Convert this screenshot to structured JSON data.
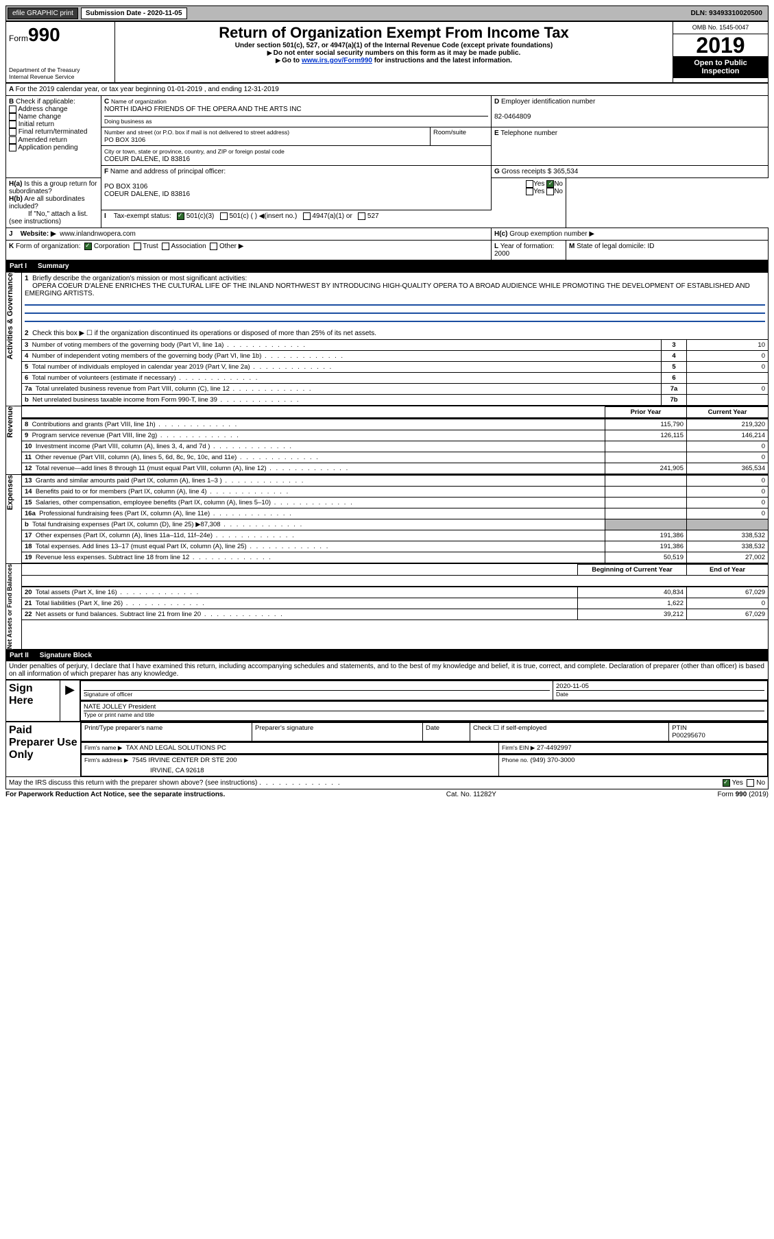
{
  "topbar": {
    "efile": "efile GRAPHIC print",
    "sub_label": "Submission Date - 2020-11-05",
    "dln": "DLN: 93493310020500"
  },
  "header": {
    "form": "Form",
    "form_num": "990",
    "dept": "Department of the Treasury",
    "irs": "Internal Revenue Service",
    "title": "Return of Organization Exempt From Income Tax",
    "subtitle": "Under section 501(c), 527, or 4947(a)(1) of the Internal Revenue Code (except private foundations)",
    "warn1": "Do not enter social security numbers on this form as it may be made public.",
    "warn2_pre": "Go to ",
    "warn2_link": "www.irs.gov/Form990",
    "warn2_post": " for instructions and the latest information.",
    "omb": "OMB No. 1545-0047",
    "year": "2019",
    "open": "Open to Public Inspection"
  },
  "A": {
    "text": "For the 2019 calendar year, or tax year beginning 01-01-2019    , and ending 12-31-2019"
  },
  "B": {
    "label": "Check if applicable:",
    "items": [
      "Address change",
      "Name change",
      "Initial return",
      "Final return/terminated",
      "Amended return",
      "Application pending"
    ]
  },
  "C": {
    "name_label": "Name of organization",
    "name": "NORTH IDAHO FRIENDS OF THE OPERA AND THE ARTS INC",
    "dba_label": "Doing business as",
    "street_label": "Number and street (or P.O. box if mail is not delivered to street address)",
    "room_label": "Room/suite",
    "street": "PO BOX 3106",
    "city_label": "City or town, state or province, country, and ZIP or foreign postal code",
    "city": "COEUR DALENE, ID  83816"
  },
  "D": {
    "label": "Employer identification number",
    "val": "82-0464809"
  },
  "E": {
    "label": "Telephone number"
  },
  "G": {
    "label": "Gross receipts $",
    "val": "365,534"
  },
  "F": {
    "label": "Name and address of principal officer:",
    "addr1": "PO BOX 3106",
    "addr2": "COEUR DALENE, ID  83816"
  },
  "H": {
    "a": "Is this a group return for subordinates?",
    "b": "Are all subordinates included?",
    "b_note": "If \"No,\" attach a list. (see instructions)",
    "c": "Group exemption number ▶"
  },
  "I": {
    "label": "Tax-exempt status:",
    "opts": [
      "501(c)(3)",
      "501(c) (  ) ◀(insert no.)",
      "4947(a)(1) or",
      "527"
    ]
  },
  "J": {
    "label": "Website: ▶",
    "val": "www.inlandnwopera.com"
  },
  "K": {
    "label": "Form of organization:",
    "opts": [
      "Corporation",
      "Trust",
      "Association",
      "Other ▶"
    ]
  },
  "L": {
    "label": "Year of formation:",
    "val": "2000"
  },
  "M": {
    "label": "State of legal domicile:",
    "val": "ID"
  },
  "part1": {
    "title": "Part I",
    "name": "Summary",
    "q1": "Briefly describe the organization's mission or most significant activities:",
    "q1_ans": "OPERA COEUR D'ALENE ENRICHES THE CULTURAL LIFE OF THE INLAND NORTHWEST BY INTRODUCING HIGH-QUALITY OPERA TO A BROAD AUDIENCE WHILE PROMOTING THE DEVELOPMENT OF ESTABLISHED AND EMERGING ARTISTS.",
    "q2": "Check this box ▶ ☐  if the organization discontinued its operations or disposed of more than 25% of its net assets.",
    "rows_gov": [
      {
        "n": "3",
        "t": "Number of voting members of the governing body (Part VI, line 1a)",
        "box": "3",
        "v": "10"
      },
      {
        "n": "4",
        "t": "Number of independent voting members of the governing body (Part VI, line 1b)",
        "box": "4",
        "v": "0"
      },
      {
        "n": "5",
        "t": "Total number of individuals employed in calendar year 2019 (Part V, line 2a)",
        "box": "5",
        "v": "0"
      },
      {
        "n": "6",
        "t": "Total number of volunteers (estimate if necessary)",
        "box": "6",
        "v": ""
      },
      {
        "n": "7a",
        "t": "Total unrelated business revenue from Part VIII, column (C), line 12",
        "box": "7a",
        "v": "0"
      },
      {
        "n": "b",
        "t": "Net unrelated business taxable income from Form 990-T, line 39",
        "box": "7b",
        "v": ""
      }
    ],
    "prior": "Prior Year",
    "current": "Current Year",
    "rev": [
      {
        "n": "8",
        "t": "Contributions and grants (Part VIII, line 1h)",
        "p": "115,790",
        "c": "219,320"
      },
      {
        "n": "9",
        "t": "Program service revenue (Part VIII, line 2g)",
        "p": "126,115",
        "c": "146,214"
      },
      {
        "n": "10",
        "t": "Investment income (Part VIII, column (A), lines 3, 4, and 7d )",
        "p": "",
        "c": "0"
      },
      {
        "n": "11",
        "t": "Other revenue (Part VIII, column (A), lines 5, 6d, 8c, 9c, 10c, and 11e)",
        "p": "",
        "c": "0"
      },
      {
        "n": "12",
        "t": "Total revenue—add lines 8 through 11 (must equal Part VIII, column (A), line 12)",
        "p": "241,905",
        "c": "365,534"
      }
    ],
    "exp": [
      {
        "n": "13",
        "t": "Grants and similar amounts paid (Part IX, column (A), lines 1–3 )",
        "p": "",
        "c": "0"
      },
      {
        "n": "14",
        "t": "Benefits paid to or for members (Part IX, column (A), line 4)",
        "p": "",
        "c": "0"
      },
      {
        "n": "15",
        "t": "Salaries, other compensation, employee benefits (Part IX, column (A), lines 5–10)",
        "p": "",
        "c": "0"
      },
      {
        "n": "16a",
        "t": "Professional fundraising fees (Part IX, column (A), line 11e)",
        "p": "",
        "c": "0"
      },
      {
        "n": "b",
        "t": "Total fundraising expenses (Part IX, column (D), line 25) ▶87,308",
        "p": "GRAY",
        "c": "GRAY"
      },
      {
        "n": "17",
        "t": "Other expenses (Part IX, column (A), lines 11a–11d, 11f–24e)",
        "p": "191,386",
        "c": "338,532"
      },
      {
        "n": "18",
        "t": "Total expenses. Add lines 13–17 (must equal Part IX, column (A), line 25)",
        "p": "191,386",
        "c": "338,532"
      },
      {
        "n": "19",
        "t": "Revenue less expenses. Subtract line 18 from line 12",
        "p": "50,519",
        "c": "27,002"
      }
    ],
    "boy": "Beginning of Current Year",
    "eoy": "End of Year",
    "net": [
      {
        "n": "20",
        "t": "Total assets (Part X, line 16)",
        "p": "40,834",
        "c": "67,029"
      },
      {
        "n": "21",
        "t": "Total liabilities (Part X, line 26)",
        "p": "1,622",
        "c": "0"
      },
      {
        "n": "22",
        "t": "Net assets or fund balances. Subtract line 21 from line 20",
        "p": "39,212",
        "c": "67,029"
      }
    ]
  },
  "part2": {
    "title": "Part II",
    "name": "Signature Block",
    "decl": "Under penalties of perjury, I declare that I have examined this return, including accompanying schedules and statements, and to the best of my knowledge and belief, it is true, correct, and complete. Declaration of preparer (other than officer) is based on all information of which preparer has any knowledge."
  },
  "sign": {
    "here": "Sign Here",
    "sig": "Signature of officer",
    "date": "Date",
    "date_val": "2020-11-05",
    "name": "NATE JOLLEY President",
    "name_label": "Type or print name and title"
  },
  "prep": {
    "title": "Paid Preparer Use Only",
    "pname": "Print/Type preparer's name",
    "psig": "Preparer's signature",
    "pdate": "Date",
    "check": "Check ☐ if self-employed",
    "ptin": "PTIN",
    "ptin_val": "P00295670",
    "firm_name": "Firm's name    ▶",
    "firm_name_val": "TAX AND LEGAL SOLUTIONS PC",
    "firm_ein": "Firm's EIN ▶",
    "firm_ein_val": "27-4492997",
    "firm_addr": "Firm's address ▶",
    "firm_addr_val1": "7545 IRVINE CENTER DR STE 200",
    "firm_addr_val2": "IRVINE, CA  92618",
    "phone": "Phone no.",
    "phone_val": "(949) 370-3000"
  },
  "bottom": {
    "discuss": "May the IRS discuss this return with the preparer shown above? (see instructions)",
    "paperwork": "For Paperwork Reduction Act Notice, see the separate instructions.",
    "cat": "Cat. No. 11282Y",
    "form": "Form 990 (2019)"
  },
  "section_labels": {
    "gov": "Activities & Governance",
    "rev": "Revenue",
    "exp": "Expenses",
    "net": "Net Assets or Fund Balances"
  }
}
